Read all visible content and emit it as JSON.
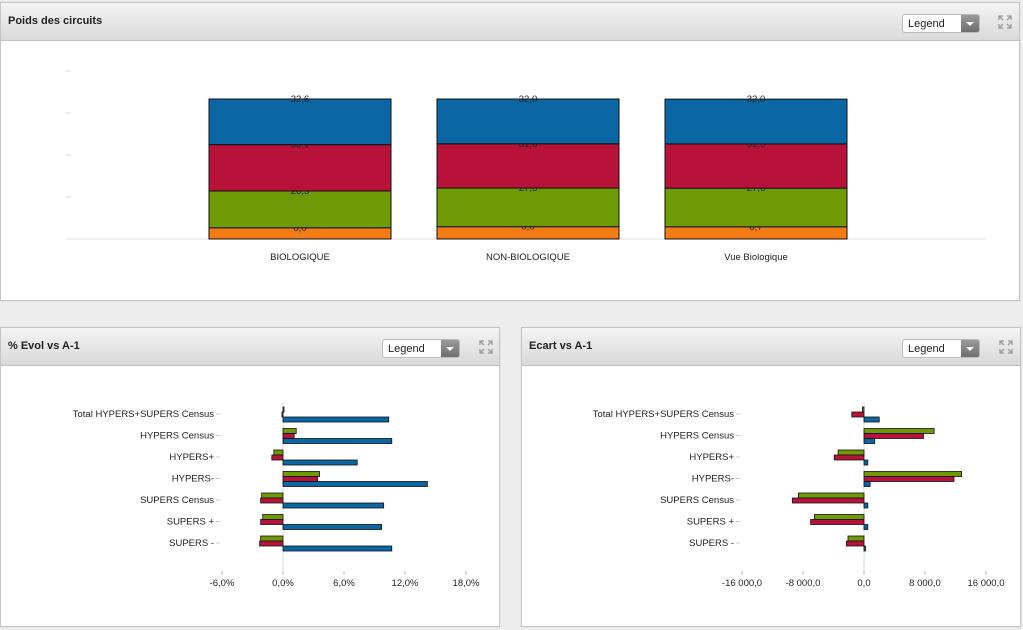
{
  "legend_label": "Legend",
  "panels": {
    "top": {
      "title": "Poids des circuits"
    },
    "bottom_left": {
      "title": "% Evol vs A-1"
    },
    "bottom_right": {
      "title": "Ecart vs A-1"
    }
  },
  "icons": {
    "dropdown": "chevron-down-icon",
    "expand": "expand-icon"
  },
  "colors": {
    "blue": "#0a67a3",
    "red": "#b8123a",
    "green": "#6e9a06",
    "orange": "#f37c14"
  },
  "chart_data": [
    {
      "type": "bar",
      "stacked": true,
      "percent": true,
      "title": "Poids des circuits",
      "categories": [
        "BIOLOGIQUE",
        "NON-BIOLOGIQUE",
        "Vue Biologique"
      ],
      "series": [
        {
          "color": "orange",
          "values": [
            8.0,
            8.8,
            8.7
          ],
          "labels": [
            "8,0",
            "8,8",
            "8,7"
          ]
        },
        {
          "color": "green",
          "values": [
            26.3,
            27.6,
            27.6
          ],
          "labels": [
            "26,3",
            "27,6",
            "27,6"
          ]
        },
        {
          "color": "red",
          "values": [
            33.1,
            31.6,
            31.6
          ],
          "labels": [
            "33,1",
            "31,6",
            "31,6"
          ]
        },
        {
          "color": "blue",
          "values": [
            32.6,
            32.0,
            32.0
          ],
          "labels": [
            "32,6",
            "32,0",
            "32,0"
          ]
        }
      ]
    },
    {
      "type": "bar",
      "orientation": "horizontal",
      "title": "% Evol vs A-1",
      "categories": [
        "Total HYPERS+SUPERS Census",
        "HYPERS Census",
        "HYPERS+",
        "HYPERS-",
        "SUPERS Census",
        "SUPERS +",
        "SUPERS -"
      ],
      "xlim": [
        -6.0,
        18.0
      ],
      "xticks": [
        "-6,0%",
        "0,0%",
        "6,0%",
        "12,0%",
        "18,0%"
      ],
      "xtick_values": [
        -6,
        0,
        6,
        12,
        18
      ],
      "series": [
        {
          "color": "green",
          "values": [
            0.0,
            1.3,
            -0.9,
            3.6,
            -2.1,
            -2.0,
            -2.2
          ]
        },
        {
          "color": "red",
          "values": [
            -0.1,
            1.1,
            -1.1,
            3.4,
            -2.2,
            -2.2,
            -2.3
          ]
        },
        {
          "color": "blue",
          "values": [
            10.4,
            10.7,
            7.3,
            14.2,
            9.9,
            9.7,
            10.7
          ]
        }
      ]
    },
    {
      "type": "bar",
      "orientation": "horizontal",
      "title": "Ecart vs A-1",
      "categories": [
        "Total HYPERS+SUPERS Census",
        "HYPERS Census",
        "HYPERS+",
        "HYPERS-",
        "SUPERS Census",
        "SUPERS +",
        "SUPERS -"
      ],
      "xlim": [
        -16000,
        16000
      ],
      "xticks": [
        "-16 000,0",
        "-8 000,0",
        "0,0",
        "8 000,0",
        "16 000,0"
      ],
      "xtick_values": [
        -16000,
        -8000,
        0,
        8000,
        16000
      ],
      "series": [
        {
          "color": "green",
          "values": [
            -200,
            9200,
            -3400,
            12800,
            -8600,
            -6500,
            -2100
          ]
        },
        {
          "color": "red",
          "values": [
            -1600,
            7800,
            -3900,
            11800,
            -9400,
            -7000,
            -2300
          ]
        },
        {
          "color": "blue",
          "values": [
            2000,
            1400,
            500,
            800,
            500,
            500,
            200
          ]
        }
      ]
    }
  ]
}
